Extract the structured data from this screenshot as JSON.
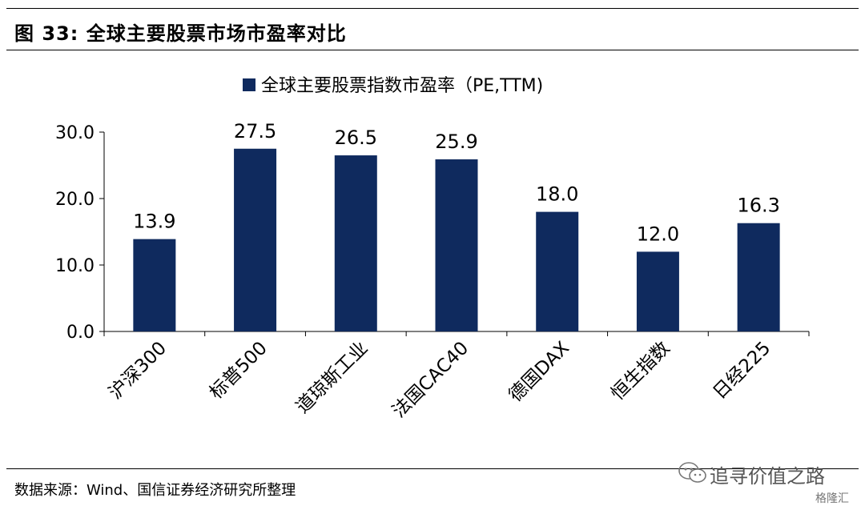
{
  "figure": {
    "title": "图 33: 全球主要股票市场市盈率对比",
    "source": "数据来源：Wind、国信证券经济研究所整理"
  },
  "watermark": {
    "text": "追寻价值之路",
    "logo_text": "格隆汇",
    "icon": "wechat-icon"
  },
  "chart_data": {
    "type": "bar",
    "categories": [
      "沪深300",
      "标普500",
      "道琼斯工业",
      "法国CAC40",
      "德国DAX",
      "恒生指数",
      "日经225"
    ],
    "series": [
      {
        "name": "全球主要股票指数市盈率（PE,TTM)",
        "values": [
          13.9,
          27.5,
          26.5,
          25.9,
          18.0,
          12.0,
          16.3
        ],
        "color": "#0f2a5e"
      }
    ],
    "data_labels": [
      "13.9",
      "27.5",
      "26.5",
      "25.9",
      "18.0",
      "12.0",
      "16.3"
    ],
    "y_ticks": [
      "0.0",
      "10.0",
      "20.0",
      "30.0"
    ],
    "ylim": [
      0,
      30
    ],
    "legend": "top-center",
    "grid": false
  }
}
